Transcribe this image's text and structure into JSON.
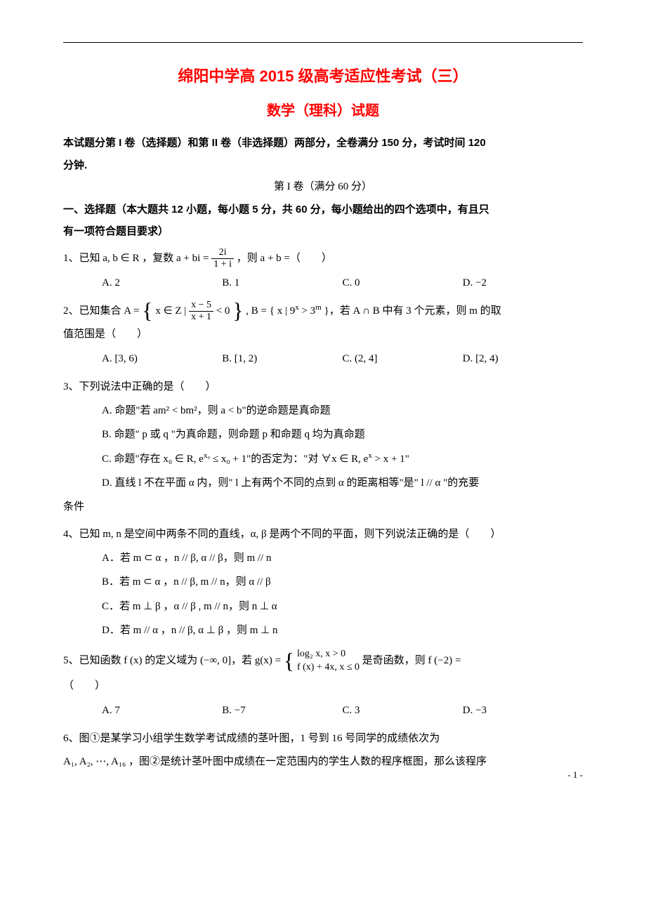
{
  "colors": {
    "title_color": "#ff0000",
    "text_color": "#000000",
    "background": "#ffffff",
    "rule_color": "#000000"
  },
  "typography": {
    "title_fontsize": 22,
    "subtitle_fontsize": 20,
    "body_fontsize": 15,
    "title_font": "SimHei",
    "body_font": "SimSun"
  },
  "header": {
    "title_main": "绵阳中学高 2015 级高考适应性考试（三）",
    "title_sub": "数学（理科）试题"
  },
  "intro": {
    "line1": "本试题分第 I 卷（选择题）和第 II 卷（非选择题）两部分，全卷满分 150 分，考试时间 120",
    "line2": "分钟.",
    "section_header": "第 I 卷（满分 60 分）",
    "instruction1": "一、选择题（本大题共 12 小题，每小题 5 分，共 60 分，每小题给出的四个选项中，有且只",
    "instruction2": "有一项符合题目要求）"
  },
  "q1": {
    "stem_a": "1、已知 a, b ∈ R ，复数 a + bi = ",
    "frac_num": "2i",
    "frac_den": "1 + i",
    "stem_b": "，则 a + b =（　　）",
    "A": "A. 2",
    "B": "B. 1",
    "C": "C. 0",
    "D": "D. −2"
  },
  "q2": {
    "stem_a": "2、已知集合 A = ",
    "set_open": "{",
    "set_a": " x ∈ Z | ",
    "frac_num": "x − 5",
    "frac_den": "x + 1",
    "set_b": " < 0 ",
    "set_close": "}",
    "set_c": ", B = { x | 9",
    "sup_x": "x",
    "set_d": " > 3",
    "sup_m": "m",
    "set_e": " }，若 A ∩ B 中有 3 个元素，则 m 的取",
    "line2": "值范围是（　　）",
    "A": "A. [3, 6)",
    "B": "B. [1, 2)",
    "C": "C. (2, 4]",
    "D": "D. [2, 4)"
  },
  "q3": {
    "stem": "3、下列说法中正确的是（　　）",
    "A": "A. 命题\"若 am² < bm²，则 a < b\"的逆命题是真命题",
    "B": "B. 命题\" p 或 q \"为真命题，则命题 p 和命题 q 均为真命题",
    "C_a": "C. 命题\"存在 x₀ ∈ R, e",
    "C_sup": "x₀",
    "C_b": " ≤ x₀ + 1\"的否定为：\"对 ∀x ∈ R, e",
    "C_sup2": "x",
    "C_c": " > x + 1\"",
    "D1": "D. 直线 l 不在平面 α 内，则\" l 上有两个不同的点到 α 的距离相等\"是\" l // α \"的充要",
    "D2": "条件"
  },
  "q4": {
    "stem": "4、已知 m, n 是空间中两条不同的直线，α, β 是两个不同的平面，则下列说法正确的是（　　）",
    "A": "A．若 m ⊂ α ，n // β, α // β，则 m // n",
    "B": "B．若 m ⊂ α ，n // β, m // n，则 α // β",
    "C": "C．若 m ⊥ β ，α // β , m // n，则 n ⊥ α",
    "D": "D．若 m // α ，n // β, α ⊥ β ，则 m ⊥ n"
  },
  "q5": {
    "stem_a": "5、已知函数 f (x) 的定义域为 (−∞, 0]，若 g(x) = ",
    "piece1": "log₂ x, x > 0",
    "piece2": "f (x) + 4x, x ≤ 0",
    "stem_b": " 是奇函数，则 f (−2) =",
    "line2": "（　　）",
    "A": "A. 7",
    "B": "B. −7",
    "C": "C. 3",
    "D": "D. −3"
  },
  "q6": {
    "line1": "6、图①是某学习小组学生数学考试成绩的茎叶图，1 号到 16 号同学的成绩依次为",
    "line2": "A₁, A₂, ⋯, A₁₆ ，图②是统计茎叶图中成绩在一定范围内的学生人数的程序框图，那么该程序"
  },
  "footer": {
    "page_num": "- 1 -"
  }
}
